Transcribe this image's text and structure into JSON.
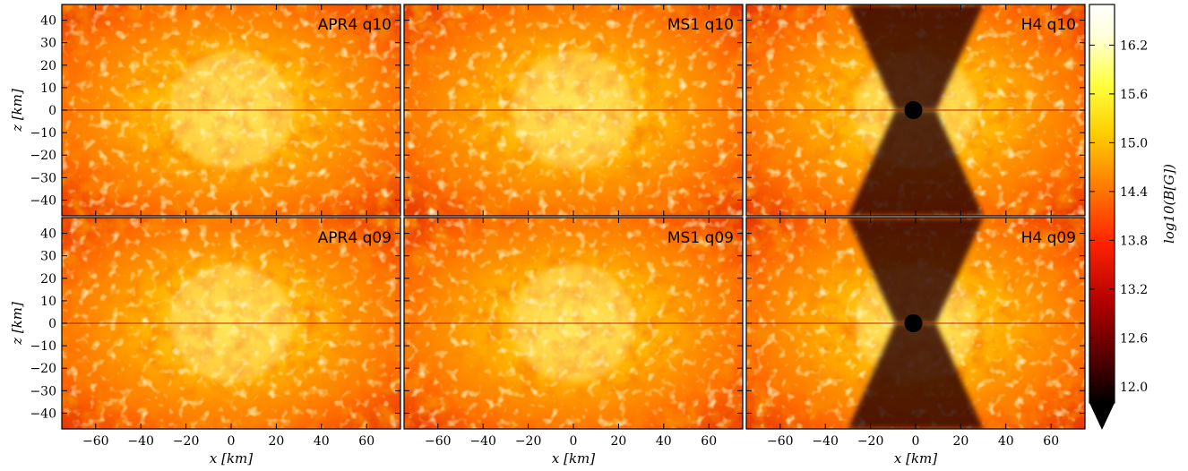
{
  "chart_data": {
    "type": "heatmap",
    "layout": {
      "rows": 2,
      "cols": 3
    },
    "panels": [
      {
        "label": "APR4 q10",
        "row": 0,
        "col": 0,
        "black_hole": false,
        "funnel": false
      },
      {
        "label": "MS1 q10",
        "row": 0,
        "col": 1,
        "black_hole": false,
        "funnel": false
      },
      {
        "label": "H4 q10",
        "row": 0,
        "col": 2,
        "black_hole": true,
        "funnel": true
      },
      {
        "label": "APR4 q09",
        "row": 1,
        "col": 0,
        "black_hole": false,
        "funnel": false
      },
      {
        "label": "MS1 q09",
        "row": 1,
        "col": 1,
        "black_hole": false,
        "funnel": false
      },
      {
        "label": "H4 q09",
        "row": 1,
        "col": 2,
        "black_hole": true,
        "funnel": true
      }
    ],
    "xlabel": "x [km]",
    "ylabel": "z [km]",
    "xlim": [
      -75,
      75
    ],
    "ylim": [
      -47,
      47
    ],
    "xticks": [
      -60,
      -40,
      -20,
      0,
      20,
      40,
      60
    ],
    "yticks": [
      40,
      30,
      20,
      10,
      0,
      -10,
      -20,
      -30,
      -40
    ],
    "colorbar": {
      "label": "log10(B[G])",
      "range": [
        11.8,
        16.7
      ],
      "ticks": [
        "16.2",
        "15.6",
        "15.0",
        "14.4",
        "13.8",
        "13.2",
        "12.6",
        "12.0"
      ],
      "tick_values": [
        16.2,
        15.6,
        15.0,
        14.4,
        13.8,
        13.2,
        12.6,
        12.0
      ],
      "extend": "min",
      "colormap": [
        "#000000",
        "#5a0000",
        "#b00000",
        "#ff2200",
        "#ff8000",
        "#ffd000",
        "#ffff40",
        "#ffffd8",
        "#ffffff"
      ]
    }
  }
}
